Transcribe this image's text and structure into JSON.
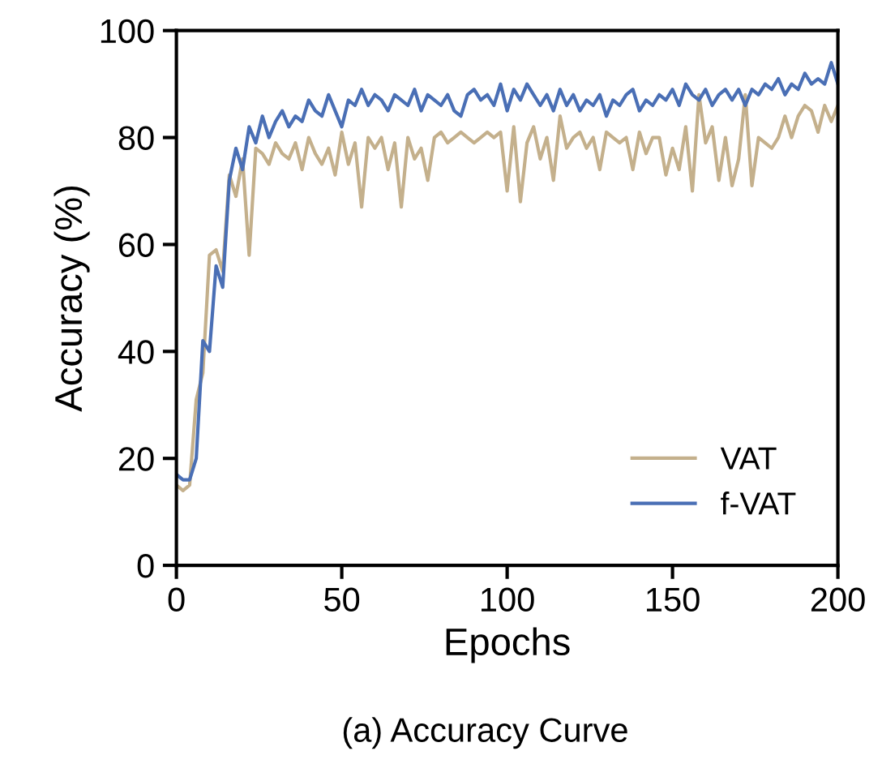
{
  "chart_data": {
    "type": "line",
    "xlabel": "Epochs",
    "ylabel": "Accuracy (%)",
    "annotations": [
      "(a) Accuracy Curve"
    ],
    "x": [
      0,
      2,
      4,
      6,
      8,
      10,
      12,
      14,
      16,
      18,
      20,
      22,
      24,
      26,
      28,
      30,
      32,
      34,
      36,
      38,
      40,
      42,
      44,
      46,
      48,
      50,
      52,
      54,
      56,
      58,
      60,
      62,
      64,
      66,
      68,
      70,
      72,
      74,
      76,
      78,
      80,
      82,
      84,
      86,
      88,
      90,
      92,
      94,
      96,
      98,
      100,
      102,
      104,
      106,
      108,
      110,
      112,
      114,
      116,
      118,
      120,
      122,
      124,
      126,
      128,
      130,
      132,
      134,
      136,
      138,
      140,
      142,
      144,
      146,
      148,
      150,
      152,
      154,
      156,
      158,
      160,
      162,
      164,
      166,
      168,
      170,
      172,
      174,
      176,
      178,
      180,
      182,
      184,
      186,
      188,
      190,
      192,
      194,
      196,
      198,
      200
    ],
    "series": [
      {
        "name": "VAT",
        "color": "#c4b08c",
        "values": [
          15,
          14,
          15,
          31,
          36,
          58,
          59,
          55,
          73,
          69,
          76,
          58,
          78,
          77,
          75,
          79,
          77,
          76,
          79,
          74,
          80,
          77,
          75,
          78,
          73,
          81,
          75,
          79,
          67,
          80,
          78,
          80,
          74,
          79,
          67,
          80,
          76,
          78,
          72,
          80,
          81,
          79,
          80,
          81,
          80,
          79,
          80,
          81,
          80,
          81,
          70,
          82,
          68,
          79,
          82,
          76,
          80,
          72,
          84,
          78,
          80,
          81,
          78,
          80,
          74,
          81,
          80,
          79,
          80,
          74,
          81,
          77,
          80,
          80,
          73,
          78,
          74,
          82,
          70,
          88,
          79,
          82,
          72,
          80,
          71,
          76,
          88,
          71,
          80,
          79,
          78,
          80,
          84,
          80,
          84,
          86,
          85,
          81,
          86,
          83,
          86
        ]
      },
      {
        "name": "f-VAT",
        "color": "#4a6fb5",
        "values": [
          17,
          16,
          16,
          20,
          42,
          40,
          56,
          52,
          72,
          78,
          74,
          82,
          79,
          84,
          80,
          83,
          85,
          82,
          84,
          83,
          87,
          85,
          84,
          88,
          85,
          82,
          87,
          86,
          89,
          86,
          88,
          87,
          85,
          88,
          87,
          86,
          89,
          85,
          88,
          87,
          86,
          88,
          85,
          84,
          88,
          89,
          87,
          88,
          86,
          90,
          85,
          89,
          87,
          90,
          88,
          86,
          88,
          85,
          89,
          86,
          88,
          85,
          87,
          86,
          88,
          84,
          87,
          86,
          88,
          89,
          85,
          87,
          86,
          88,
          87,
          89,
          86,
          90,
          88,
          87,
          89,
          86,
          88,
          89,
          87,
          89,
          86,
          89,
          88,
          90,
          89,
          91,
          88,
          90,
          89,
          92,
          90,
          91,
          90,
          94,
          90
        ]
      }
    ],
    "xlim": [
      0,
      200
    ],
    "xticks": [
      0,
      50,
      100,
      150,
      200
    ],
    "ylim": [
      0,
      100
    ],
    "yticks": [
      0,
      20,
      40,
      60,
      80,
      100
    ],
    "grid": false,
    "legend": "bottom right",
    "marker": "none",
    "line_style": "solid"
  }
}
